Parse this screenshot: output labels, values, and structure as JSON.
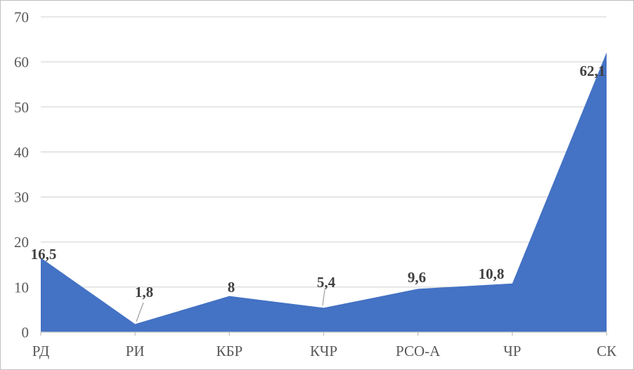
{
  "chart_data": {
    "type": "area",
    "title": "",
    "xlabel": "",
    "ylabel": "",
    "categories": [
      "РД",
      "РИ",
      "КБР",
      "КЧР",
      "РСО-А",
      "ЧР",
      "СК"
    ],
    "values": [
      16.5,
      1.8,
      8,
      5.4,
      9.6,
      10.8,
      62.1
    ],
    "value_labels": [
      "16,5",
      "1,8",
      "8",
      "5,4",
      "9,6",
      "10,8",
      "62,1"
    ],
    "callout_indices": [
      1,
      3
    ],
    "ylim": [
      0,
      70
    ],
    "ytick_step": 10,
    "ytick_labels": [
      "0",
      "10",
      "20",
      "30",
      "40",
      "50",
      "60",
      "70"
    ],
    "grid": true,
    "legend": false,
    "colors": {
      "area_fill": "#4472C4",
      "gridline": "#D9D9D9",
      "axis_line": "#BFBFBF",
      "tick": "#BFBFBF",
      "axis_label": "#595959",
      "data_label": "#404040",
      "leader_line": "#A6A6A6",
      "frame_border": "#BFBFBF",
      "background": "#FFFFFF"
    }
  }
}
